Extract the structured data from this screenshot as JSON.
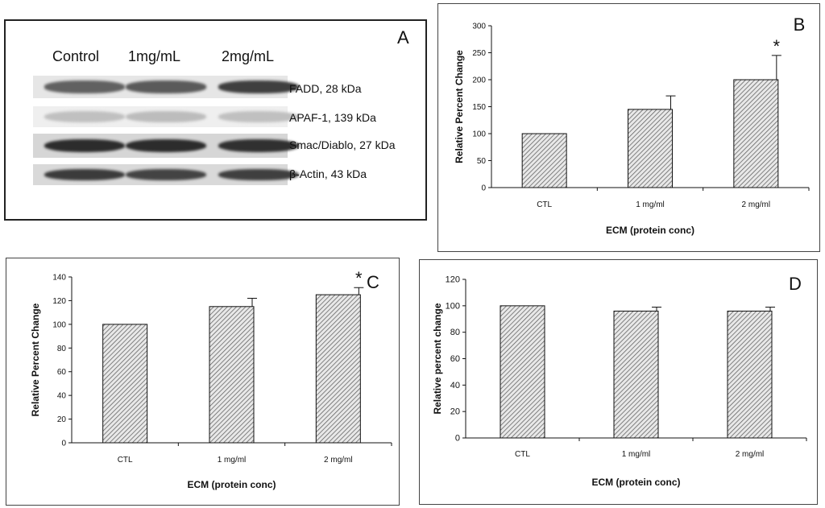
{
  "blot": {
    "letter": "A",
    "lanes": [
      "Control",
      "1mg/mL",
      "2mg/mL"
    ],
    "bands": [
      {
        "label": "FADD, 28 kDa",
        "strip": "#e6e6e6",
        "intensities": [
          0.62,
          0.66,
          0.8
        ]
      },
      {
        "label": "APAF-1, 139 kDa",
        "strip": "#efefef",
        "intensities": [
          0.12,
          0.14,
          0.12
        ]
      },
      {
        "label": "Smac/Diablo, 27 kDa",
        "strip": "#d6d6d6",
        "intensities": [
          0.9,
          0.9,
          0.88
        ]
      },
      {
        "label": "β-Actin, 43 kDa",
        "strip": "#d9d9d9",
        "intensities": [
          0.82,
          0.78,
          0.8
        ]
      }
    ]
  },
  "chart_data": [
    {
      "id": "b",
      "letter": "B",
      "type": "bar",
      "categories": [
        "CTL",
        "1 mg/ml",
        "2 mg/ml"
      ],
      "values": [
        100,
        145,
        200
      ],
      "errors": [
        0,
        25,
        45
      ],
      "significance": [
        "",
        "",
        "*"
      ],
      "ylabel": "Relative Percent Change",
      "xlabel": "ECM (protein conc)",
      "ylim": [
        0,
        300
      ],
      "yticks": [
        0,
        50,
        100,
        150,
        200,
        250,
        300
      ],
      "grid": false,
      "bar_fill": "hatched grey"
    },
    {
      "id": "c",
      "letter": "C",
      "type": "bar",
      "categories": [
        "CTL",
        "1 mg/ml",
        "2 mg/ml"
      ],
      "values": [
        100,
        115,
        125
      ],
      "errors": [
        0,
        7,
        6
      ],
      "significance": [
        "",
        "",
        "*"
      ],
      "ylabel": "Relative Percent Change",
      "xlabel": "ECM (protein conc)",
      "ylim": [
        0,
        140
      ],
      "yticks": [
        0,
        20,
        40,
        60,
        80,
        100,
        120,
        140
      ],
      "grid": false,
      "bar_fill": "hatched grey"
    },
    {
      "id": "d",
      "letter": "D",
      "type": "bar",
      "categories": [
        "CTL",
        "1 mg/ml",
        "2 mg/ml"
      ],
      "values": [
        100,
        96,
        96
      ],
      "errors": [
        0,
        3,
        3
      ],
      "significance": [
        "",
        "",
        ""
      ],
      "ylabel": "Relative percent change",
      "xlabel": "ECM (protein conc)",
      "ylim": [
        0,
        120
      ],
      "yticks": [
        0,
        20,
        40,
        60,
        80,
        100,
        120
      ],
      "grid": false,
      "bar_fill": "hatched grey"
    }
  ]
}
